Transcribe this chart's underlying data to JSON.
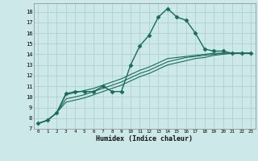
{
  "xlabel": "Humidex (Indice chaleur)",
  "background_color": "#cce8e8",
  "line_color": "#1a6b5a",
  "grid_color": "#aacccc",
  "xlim": [
    -0.5,
    23.5
  ],
  "ylim": [
    7,
    18.8
  ],
  "xticks": [
    0,
    1,
    2,
    3,
    4,
    5,
    6,
    7,
    8,
    9,
    10,
    11,
    12,
    13,
    14,
    15,
    16,
    17,
    18,
    19,
    20,
    21,
    22,
    23
  ],
  "yticks": [
    7,
    8,
    9,
    10,
    11,
    12,
    13,
    14,
    15,
    16,
    17,
    18
  ],
  "series": [
    {
      "x": [
        0,
        1,
        2,
        3,
        4,
        5,
        6,
        7,
        8,
        9,
        10,
        11,
        12,
        13,
        14,
        15,
        16,
        17,
        18,
        19,
        20,
        21,
        22,
        23
      ],
      "y": [
        7.5,
        7.8,
        8.5,
        10.3,
        10.5,
        10.5,
        10.5,
        11.0,
        10.5,
        10.5,
        13.0,
        14.8,
        15.8,
        17.5,
        18.3,
        17.5,
        17.2,
        16.0,
        14.5,
        14.3,
        14.3,
        14.1,
        14.1,
        14.1
      ],
      "marker": "D",
      "markersize": 2.5,
      "linewidth": 1.0
    },
    {
      "x": [
        0,
        1,
        2,
        3,
        4,
        5,
        6,
        7,
        8,
        9,
        10,
        11,
        12,
        13,
        14,
        15,
        16,
        17,
        18,
        19,
        20,
        21,
        22,
        23
      ],
      "y": [
        7.5,
        7.8,
        8.5,
        9.5,
        9.7,
        9.9,
        10.2,
        10.5,
        10.8,
        11.1,
        11.5,
        11.9,
        12.2,
        12.6,
        13.0,
        13.2,
        13.4,
        13.6,
        13.7,
        13.9,
        14.0,
        14.1,
        14.1,
        14.1
      ],
      "marker": null,
      "linewidth": 0.8
    },
    {
      "x": [
        0,
        1,
        2,
        3,
        4,
        5,
        6,
        7,
        8,
        9,
        10,
        11,
        12,
        13,
        14,
        15,
        16,
        17,
        18,
        19,
        20,
        21,
        22,
        23
      ],
      "y": [
        7.5,
        7.8,
        8.5,
        9.8,
        10.0,
        10.2,
        10.5,
        10.8,
        11.1,
        11.4,
        11.8,
        12.2,
        12.5,
        12.9,
        13.3,
        13.5,
        13.7,
        13.8,
        13.9,
        14.0,
        14.1,
        14.1,
        14.1,
        14.1
      ],
      "marker": null,
      "linewidth": 0.8
    },
    {
      "x": [
        0,
        1,
        2,
        3,
        4,
        5,
        6,
        7,
        8,
        9,
        10,
        11,
        12,
        13,
        14,
        15,
        16,
        17,
        18,
        19,
        20,
        21,
        22,
        23
      ],
      "y": [
        7.5,
        7.8,
        8.5,
        10.2,
        10.4,
        10.6,
        10.8,
        11.1,
        11.4,
        11.7,
        12.1,
        12.5,
        12.8,
        13.2,
        13.6,
        13.7,
        13.8,
        13.9,
        14.0,
        14.1,
        14.1,
        14.1,
        14.1,
        14.1
      ],
      "marker": null,
      "linewidth": 0.8
    }
  ]
}
